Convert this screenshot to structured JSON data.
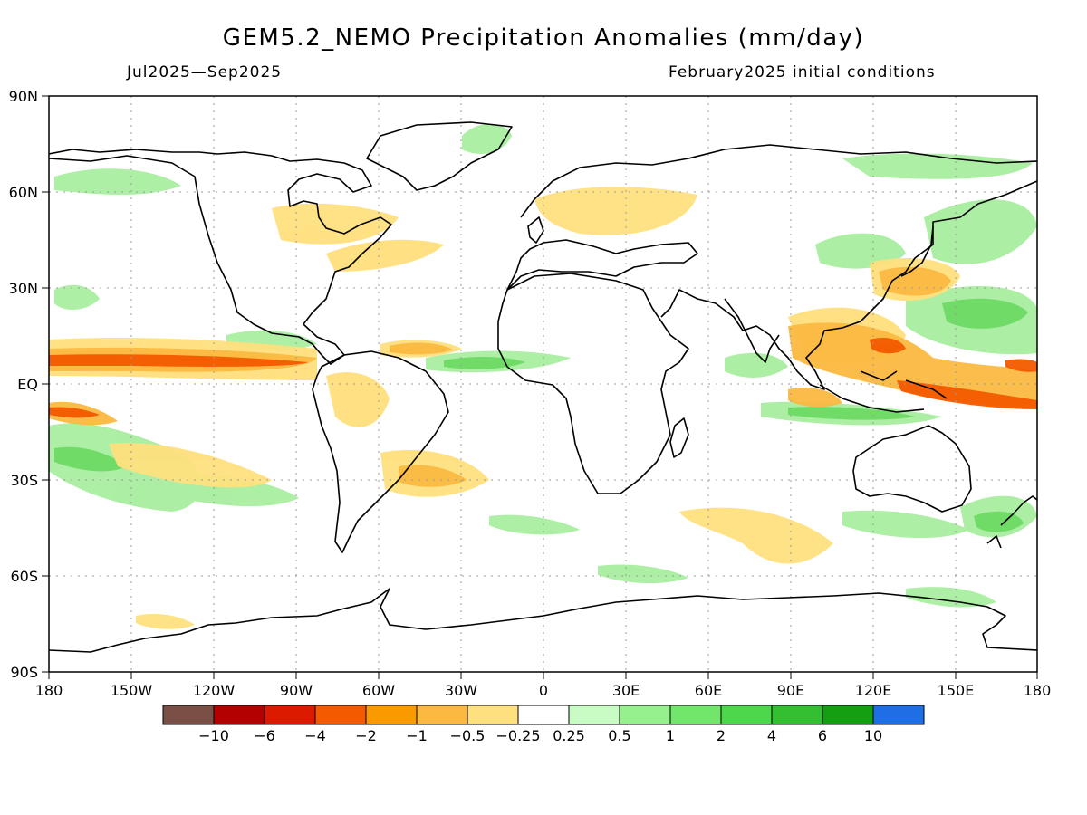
{
  "title": "GEM5.2_NEMO Precipitation Anomalies (mm/day)",
  "period": "Jul2025—Sep2025",
  "initial_conditions": "February2025 initial conditions",
  "lat_labels": [
    "90N",
    "60N",
    "30N",
    "EQ",
    "30S",
    "60S",
    "90S"
  ],
  "lon_labels": [
    "180",
    "150W",
    "120W",
    "90W",
    "60W",
    "30W",
    "0",
    "30E",
    "60E",
    "90E",
    "120E",
    "150E",
    "180"
  ],
  "colorbar": {
    "colors": [
      "#7a4f45",
      "#b30000",
      "#dc1a00",
      "#f45a00",
      "#fb9a00",
      "#fbb941",
      "#ffe07e",
      "#ffffff",
      "#c8fcc4",
      "#96f08e",
      "#72e66a",
      "#4cd84c",
      "#32c032",
      "#12a012",
      "#1e6ee6"
    ],
    "labels": [
      "−10",
      "−6",
      "−4",
      "−2",
      "−1",
      "−0.5",
      "−0.25",
      "0.25",
      "0.5",
      "1",
      "2",
      "4",
      "6",
      "10"
    ]
  },
  "legend": {
    "dry": "#f08c00",
    "wet": "#4cd84c"
  }
}
